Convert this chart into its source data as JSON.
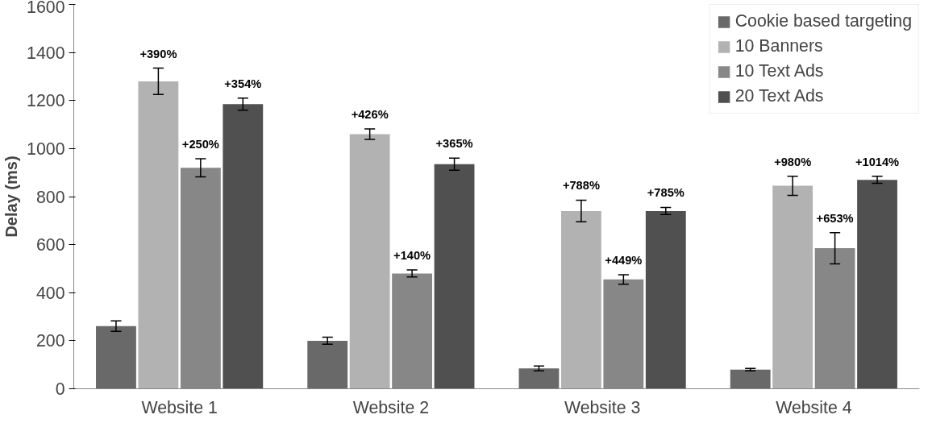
{
  "chart_data": {
    "type": "bar",
    "ylabel": "Delay (ms)",
    "categories": [
      "Website 1",
      "Website 2",
      "Website 3",
      "Website 4"
    ],
    "ylim": [
      0,
      1600
    ],
    "yticks": [
      0,
      200,
      400,
      600,
      800,
      1000,
      1200,
      1400,
      1600
    ],
    "grid": false,
    "legend": "top right",
    "series": [
      {
        "name": "Cookie based targeting",
        "color": "#696969",
        "values": [
          261,
          200,
          85,
          80
        ],
        "errors": [
          22,
          15,
          10,
          5
        ]
      },
      {
        "name": "10 Banners",
        "color": "#b2b2b2",
        "values": [
          1280,
          1060,
          740,
          845
        ],
        "errors": [
          55,
          22,
          45,
          40
        ]
      },
      {
        "name": "10 Text Ads",
        "color": "#878787",
        "values": [
          920,
          480,
          455,
          585
        ],
        "errors": [
          38,
          15,
          20,
          65
        ]
      },
      {
        "name": "20 Text Ads",
        "color": "#505050",
        "values": [
          1185,
          935,
          740,
          870
        ],
        "errors": [
          25,
          25,
          15,
          15
        ]
      }
    ],
    "annotations": [
      "+390%",
      "+250%",
      "+354%",
      "+426%",
      "+140%",
      "+365%",
      "+788%",
      "+449%",
      "+785%",
      "+980%",
      "+653%",
      "+1014%"
    ]
  }
}
